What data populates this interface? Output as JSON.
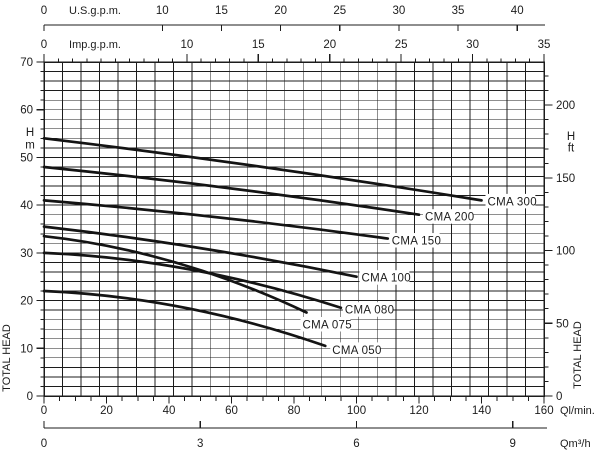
{
  "chart_data": {
    "type": "line",
    "description": "Pump performance curves: total head vs capacity for CMA series pumps",
    "x_axes": [
      {
        "id": "us",
        "label": "U.S.g.p.m.",
        "ticks": [
          0,
          10,
          15,
          20,
          25,
          30,
          35,
          40
        ]
      },
      {
        "id": "imp",
        "label": "Imp.g.p.m.",
        "ticks": [
          0,
          10,
          15,
          20,
          25,
          30,
          35
        ]
      },
      {
        "id": "lmin",
        "label": "Ql/min.",
        "ticks": [
          0,
          20,
          40,
          60,
          80,
          100,
          120,
          140,
          160
        ],
        "range": [
          0,
          160
        ]
      },
      {
        "id": "m3h",
        "label": "Qm³/h",
        "ticks": [
          0,
          3,
          6,
          9
        ]
      }
    ],
    "y_axes": [
      {
        "id": "m",
        "unit_line1": "H",
        "unit_line2": "m",
        "ticks": [
          0,
          10,
          20,
          30,
          40,
          50,
          60,
          70
        ],
        "range": [
          0,
          70
        ],
        "title": "TOTAL HEAD"
      },
      {
        "id": "ft",
        "unit_line1": "H",
        "unit_line2": "ft",
        "ticks": [
          0,
          50,
          100,
          150,
          200
        ],
        "title": "TOTAL HEAD"
      }
    ],
    "grid": "on",
    "series_units": {
      "x": "l/min",
      "y": "m"
    },
    "series": [
      {
        "name": "CMA 300",
        "points": [
          [
            0,
            54.0
          ],
          [
            70,
            48.0
          ],
          [
            140,
            41.0
          ]
        ]
      },
      {
        "name": "CMA 200",
        "points": [
          [
            0,
            48.0
          ],
          [
            60,
            43.5
          ],
          [
            120,
            38.0
          ]
        ]
      },
      {
        "name": "CMA 150",
        "points": [
          [
            0,
            41.0
          ],
          [
            55,
            37.5
          ],
          [
            110,
            33.0
          ]
        ]
      },
      {
        "name": "CMA 100",
        "points": [
          [
            0,
            35.5
          ],
          [
            50,
            31.0
          ],
          [
            100,
            25.0
          ]
        ]
      },
      {
        "name": "CMA 075",
        "points": [
          [
            0,
            33.5
          ],
          [
            42,
            28.0
          ],
          [
            84,
            17.5
          ]
        ]
      },
      {
        "name": "CMA 080",
        "points": [
          [
            0,
            30.0
          ],
          [
            47,
            26.5
          ],
          [
            95,
            18.5
          ]
        ]
      },
      {
        "name": "CMA 050",
        "points": [
          [
            0,
            22.0
          ],
          [
            45,
            18.5
          ],
          [
            90,
            10.5
          ]
        ]
      }
    ]
  }
}
